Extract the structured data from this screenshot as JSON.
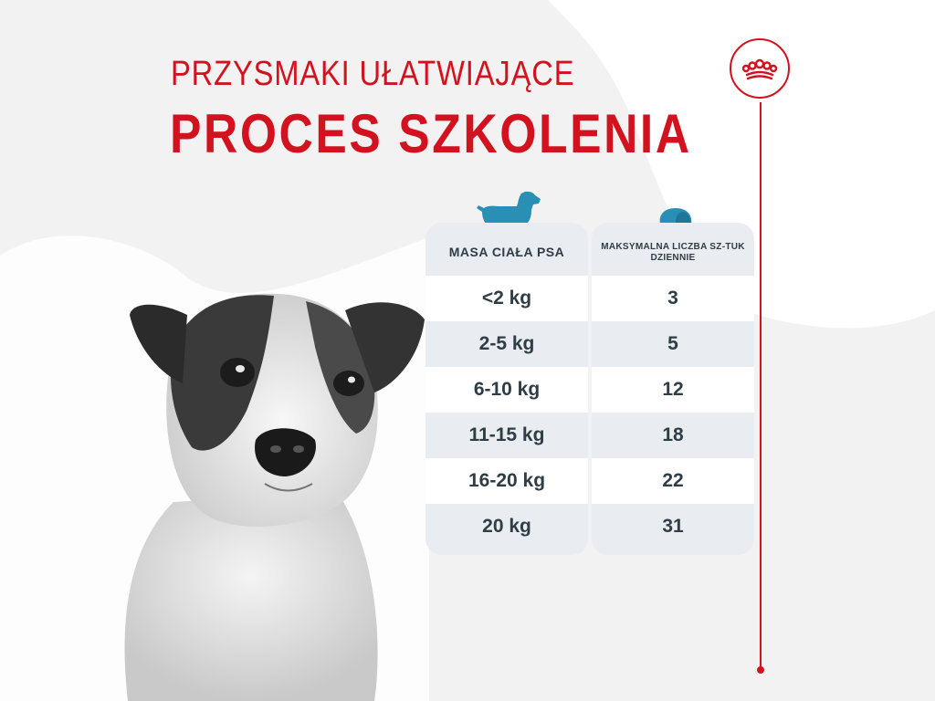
{
  "title": {
    "line1": "PRZYSMAKI UŁATWIAJĄCE",
    "line2": "PROCES SZKOLENIA"
  },
  "table": {
    "headers": {
      "weight": "MASA CIAŁA PSA",
      "max_count": "MAKSYMALNA LICZBA SZ-TUK DZIENNIE"
    },
    "rows": [
      {
        "weight": "<2 kg",
        "count": "3"
      },
      {
        "weight": "2-5 kg",
        "count": "5"
      },
      {
        "weight": "6-10 kg",
        "count": "12"
      },
      {
        "weight": "11-15 kg",
        "count": "18"
      },
      {
        "weight": "16-20 kg",
        "count": "22"
      },
      {
        "weight": "20 kg",
        "count": "31"
      }
    ]
  },
  "icons": {
    "dog": "dog-icon",
    "treat": "treat-icon",
    "brand": "crown-icon"
  },
  "colors": {
    "brand_red": "#d3121f",
    "accent_teal": "#2a8fb4",
    "text_dark": "#2f3d46",
    "row_gray": "#e9ecf0",
    "row_white": "#ffffff"
  }
}
